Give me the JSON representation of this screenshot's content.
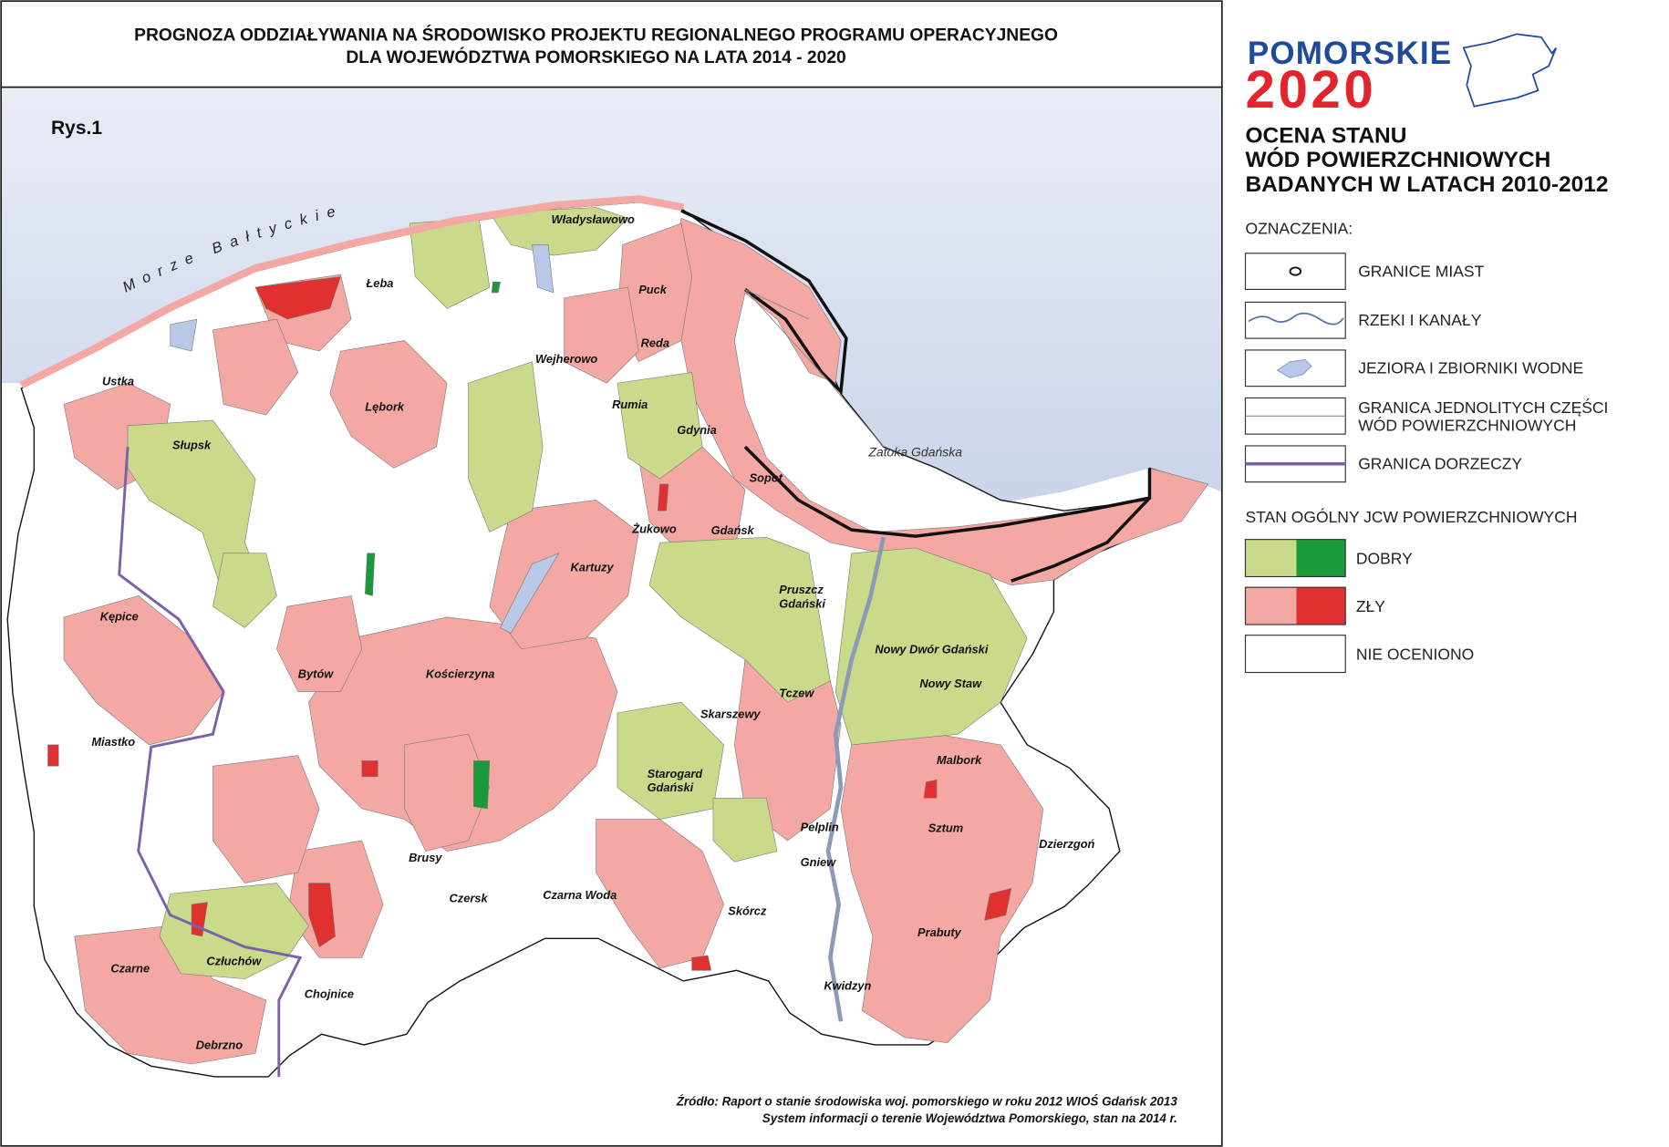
{
  "header": {
    "title_lines": [
      "PROGNOZA ODDZIAŁYWANIA NA ŚRODOWISKO PROJEKTU REGIONALNEGO PROGRAMU OPERACYJNEGO",
      "DLA WOJEWÓDZTWA POMORSKIEGO NA LATA 2014 - 2020"
    ]
  },
  "logo": {
    "name": "POMORSKIE",
    "year": "2020"
  },
  "legend": {
    "title_lines": [
      "OCENA STANU",
      "WÓD POWIERZCHNIOWYCH",
      "BADANYCH W LATACH 2010-2012"
    ],
    "heading": "OZNACZENIA:",
    "items": [
      {
        "lines": [
          "GRANICE MIAST"
        ]
      },
      {
        "lines": [
          "RZEKI  I KANAŁY"
        ]
      },
      {
        "lines": [
          "JEZIORA I ZBIORNIKI WODNE"
        ]
      },
      {
        "lines": [
          "GRANICA JEDNOLITYCH CZĘŚCI",
          "WÓD POWIERZCHNIOWYCH"
        ]
      },
      {
        "lines": [
          "GRANICA DORZECZY"
        ]
      }
    ],
    "status_heading": "STAN OGÓLNY  JCW POWIERZCHNIOWYCH",
    "status_items": [
      "DOBRY",
      "ZŁY",
      "NIE OCENIONO"
    ]
  },
  "map": {
    "figure": "Rys.1",
    "sea": "Morze Bałtyckie",
    "bay": "Zatoka Gdańska",
    "places": [
      "Łeba",
      "Władysławowo",
      "Puck",
      "Reda",
      "Wejherowo",
      "Ustka",
      "Rumia",
      "Lębork",
      "Gdynia",
      "Słupsk",
      "Sopot",
      "Żukowo",
      "Gdańsk",
      "Kartuzy",
      [
        "Pruszcz",
        "Gdański"
      ],
      "Kępice",
      "Nowy Dwór Gdański",
      "Bytów",
      "Kościerzyna",
      "Nowy Staw",
      "Tczew",
      "Skarszewy",
      "Miastko",
      "Malbork",
      [
        "Starogard",
        "Gdański"
      ],
      "Pelplin",
      "Sztum",
      "Dzierzgoń",
      "Brusy",
      "Gniew",
      "Czersk",
      "Czarna Woda",
      "Skórcz",
      "Prabuty",
      "Człuchów",
      "Czarne",
      "Kwidzyn",
      "Chojnice",
      "Debrzno"
    ]
  },
  "source": {
    "lines": [
      "Źródło: Raport o stanie środowiska woj. pomorskiego w roku 2012 WIOŚ Gdańsk 2013",
      "System informacji o terenie Województwa Pomorskiego, stan na 2014 r."
    ]
  }
}
